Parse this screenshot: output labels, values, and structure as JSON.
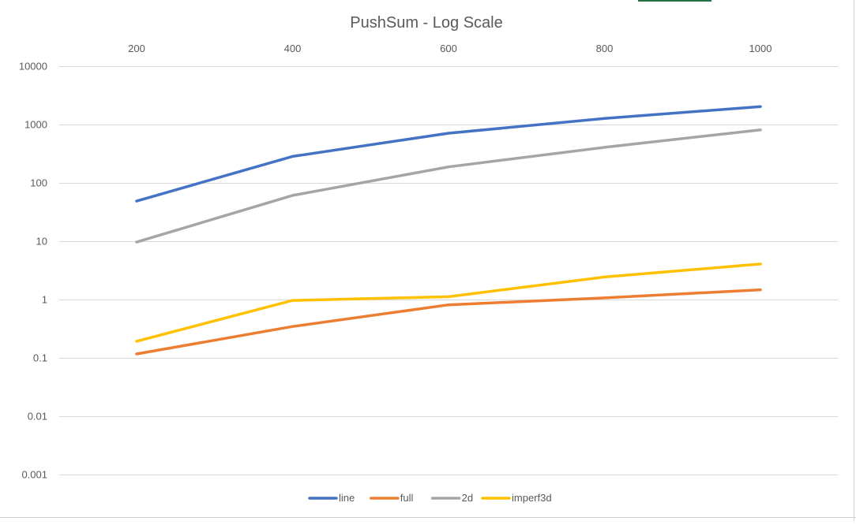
{
  "chart_data": {
    "type": "line",
    "title": "PushSum - Log Scale",
    "xlabel": "",
    "ylabel": "",
    "y_scale": "log",
    "ylim": [
      0.001,
      10000
    ],
    "y_ticks": [
      "10000",
      "1000",
      "100",
      "10",
      "1",
      "0.1",
      "0.01",
      "0.001"
    ],
    "x": [
      200,
      400,
      600,
      800,
      1000
    ],
    "x_ticks": [
      "200",
      "400",
      "600",
      "800",
      "1000"
    ],
    "x_axis_position": "top",
    "grid": true,
    "legend_position": "bottom-center",
    "series": [
      {
        "name": "line",
        "color": "#4472C4",
        "values": [
          48,
          280,
          700,
          1250,
          2000
        ]
      },
      {
        "name": "full",
        "color": "#ED7D31",
        "values": [
          0.115,
          0.34,
          0.8,
          1.05,
          1.45
        ]
      },
      {
        "name": "2d",
        "color": "#A5A5A5",
        "values": [
          9.5,
          60,
          185,
          400,
          800
        ]
      },
      {
        "name": "imperf3d",
        "color": "#FFC000",
        "values": [
          0.19,
          0.95,
          1.1,
          2.4,
          4.0
        ]
      }
    ]
  },
  "colors": {
    "gridline": "#d9d9d9",
    "frame_accent": "#217346"
  }
}
